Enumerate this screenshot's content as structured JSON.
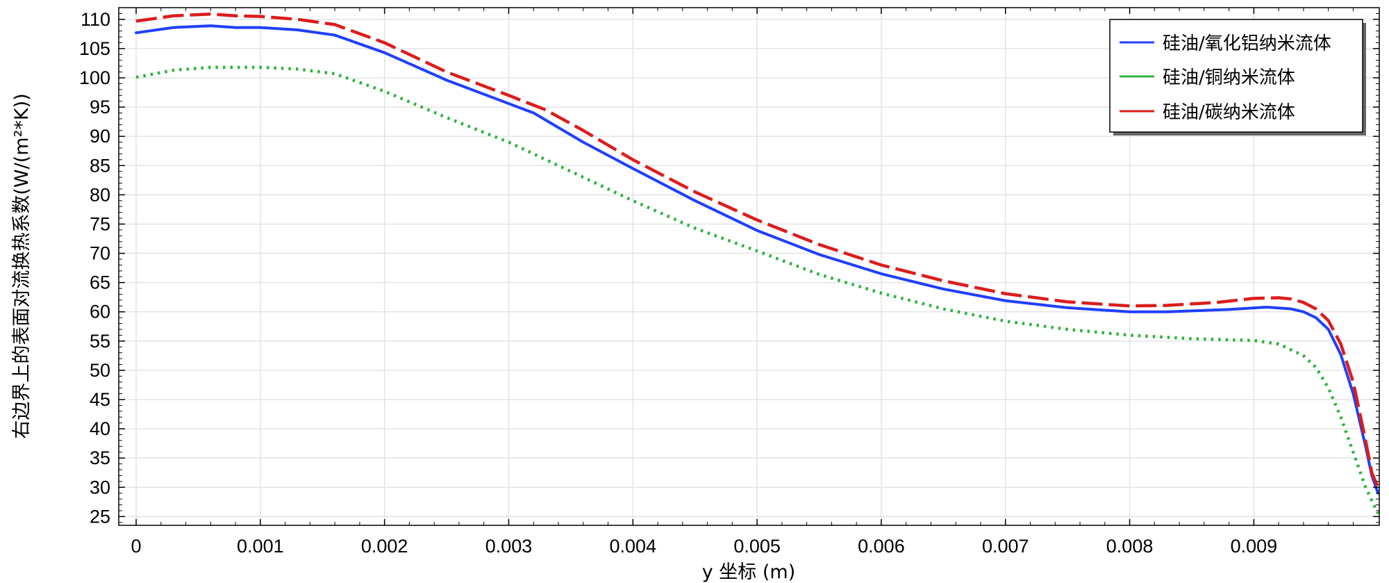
{
  "chart_data": {
    "type": "line",
    "title": "",
    "xlabel": "y 坐标 (m)",
    "ylabel": "右边界上的表面对流换热系数(W/(m²*K))",
    "xlim": [
      -0.00014,
      0.01001
    ],
    "ylim": [
      23.5,
      112
    ],
    "x_ticks": [
      0,
      0.001,
      0.002,
      0.003,
      0.004,
      0.005,
      0.006,
      0.007,
      0.008,
      0.009
    ],
    "x_tick_labels": [
      "0",
      "0.001",
      "0.002",
      "0.003",
      "0.004",
      "0.005",
      "0.006",
      "0.007",
      "0.008",
      "0.009"
    ],
    "y_ticks": [
      25,
      30,
      35,
      40,
      45,
      50,
      55,
      60,
      65,
      70,
      75,
      80,
      85,
      90,
      95,
      100,
      105,
      110
    ],
    "y_tick_labels": [
      "25",
      "30",
      "35",
      "40",
      "45",
      "50",
      "55",
      "60",
      "65",
      "70",
      "75",
      "80",
      "85",
      "90",
      "95",
      "100",
      "105",
      "110"
    ],
    "grid": true,
    "legend_position": "top-right",
    "series": [
      {
        "name": "硅油/氧化铝纳米流体",
        "color": "#1f3fff",
        "dash": "solid",
        "points": [
          [
            0,
            107.7
          ],
          [
            0.0003,
            108.6
          ],
          [
            0.0006,
            108.9
          ],
          [
            0.0008,
            108.6
          ],
          [
            0.001,
            108.6
          ],
          [
            0.0013,
            108.2
          ],
          [
            0.0016,
            107.3
          ],
          [
            0.002,
            104.3
          ],
          [
            0.0025,
            99.6
          ],
          [
            0.003,
            95.6
          ],
          [
            0.0032,
            94
          ],
          [
            0.0036,
            89
          ],
          [
            0.004,
            84.5
          ],
          [
            0.0045,
            79
          ],
          [
            0.005,
            73.9
          ],
          [
            0.0055,
            69.8
          ],
          [
            0.006,
            66.5
          ],
          [
            0.0065,
            63.9
          ],
          [
            0.007,
            61.9
          ],
          [
            0.0075,
            60.7
          ],
          [
            0.008,
            60
          ],
          [
            0.0083,
            60
          ],
          [
            0.0088,
            60.4
          ],
          [
            0.0091,
            60.8
          ],
          [
            0.0093,
            60.5
          ],
          [
            0.0094,
            60
          ],
          [
            0.0095,
            59
          ],
          [
            0.0096,
            57
          ],
          [
            0.0097,
            52.7
          ],
          [
            0.0098,
            46
          ],
          [
            0.0099,
            37
          ],
          [
            0.00995,
            32
          ],
          [
            0.01,
            29
          ]
        ]
      },
      {
        "name": "硅油/铜纳米流体",
        "color": "#2db33a",
        "dash": "dotted",
        "points": [
          [
            0,
            100.1
          ],
          [
            0.0003,
            101.3
          ],
          [
            0.0006,
            101.8
          ],
          [
            0.001,
            101.8
          ],
          [
            0.0013,
            101.5
          ],
          [
            0.0016,
            100.7
          ],
          [
            0.002,
            97.7
          ],
          [
            0.0025,
            93.2
          ],
          [
            0.003,
            89
          ],
          [
            0.0035,
            84
          ],
          [
            0.004,
            79
          ],
          [
            0.0045,
            74.3
          ],
          [
            0.005,
            70.4
          ],
          [
            0.0055,
            66.4
          ],
          [
            0.006,
            63.2
          ],
          [
            0.0065,
            60.5
          ],
          [
            0.007,
            58.4
          ],
          [
            0.0075,
            57
          ],
          [
            0.008,
            56
          ],
          [
            0.0085,
            55.4
          ],
          [
            0.009,
            55.1
          ],
          [
            0.0092,
            54.5
          ],
          [
            0.0094,
            52.5
          ],
          [
            0.0095,
            50.5
          ],
          [
            0.0096,
            47
          ],
          [
            0.0097,
            42
          ],
          [
            0.0098,
            36
          ],
          [
            0.0099,
            30
          ],
          [
            0.01,
            25.5
          ]
        ]
      },
      {
        "name": "硅油/碳纳米流体",
        "color": "#dd1c1c",
        "dash": "dashed",
        "points": [
          [
            0,
            109.7
          ],
          [
            0.0003,
            110.6
          ],
          [
            0.0006,
            110.9
          ],
          [
            0.0008,
            110.6
          ],
          [
            0.001,
            110.5
          ],
          [
            0.0013,
            110
          ],
          [
            0.0016,
            109.1
          ],
          [
            0.002,
            106
          ],
          [
            0.0025,
            101
          ],
          [
            0.003,
            97
          ],
          [
            0.0033,
            94.5
          ],
          [
            0.0036,
            91
          ],
          [
            0.004,
            86
          ],
          [
            0.0045,
            80.5
          ],
          [
            0.005,
            75.7
          ],
          [
            0.0055,
            71.5
          ],
          [
            0.006,
            68
          ],
          [
            0.0065,
            65.3
          ],
          [
            0.007,
            63.1
          ],
          [
            0.0075,
            61.7
          ],
          [
            0.008,
            61
          ],
          [
            0.0083,
            61.1
          ],
          [
            0.0087,
            61.6
          ],
          [
            0.009,
            62.3
          ],
          [
            0.0092,
            62.4
          ],
          [
            0.0093,
            62.2
          ],
          [
            0.0094,
            61.6
          ],
          [
            0.0095,
            60.5
          ],
          [
            0.0096,
            58.5
          ],
          [
            0.0097,
            54.5
          ],
          [
            0.0098,
            48
          ],
          [
            0.0099,
            38
          ],
          [
            0.00995,
            32.5
          ],
          [
            0.01,
            30
          ]
        ]
      }
    ]
  }
}
